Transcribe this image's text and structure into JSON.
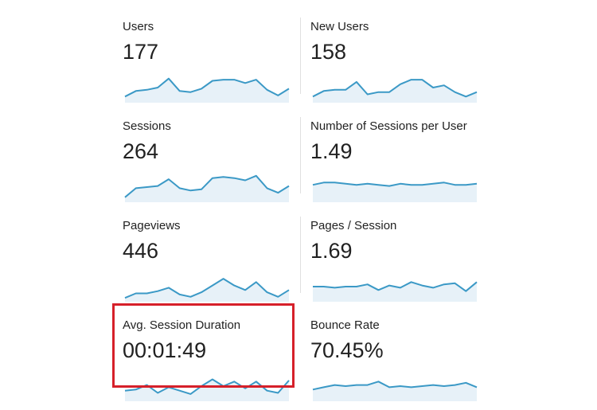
{
  "accent_color": "#3b99c6",
  "fill_color": "#e7f1f8",
  "highlight_color": "#d6202a",
  "metrics": [
    {
      "label": "Users",
      "value": "177",
      "sparkline": [
        4,
        9,
        10,
        12,
        20,
        9,
        8,
        11,
        18,
        19,
        19,
        16,
        19,
        10,
        5,
        11
      ]
    },
    {
      "label": "New Users",
      "value": "158",
      "sparkline": [
        4,
        9,
        10,
        10,
        17,
        6,
        8,
        8,
        15,
        19,
        19,
        12,
        14,
        8,
        4,
        8
      ]
    },
    {
      "label": "Sessions",
      "value": "264",
      "sparkline": [
        3,
        11,
        12,
        13,
        19,
        11,
        9,
        10,
        20,
        21,
        20,
        18,
        22,
        11,
        7,
        13
      ]
    },
    {
      "label": "Number of Sessions per User",
      "value": "1.49",
      "sparkline": [
        14,
        16,
        16,
        15,
        14,
        15,
        14,
        13,
        15,
        14,
        14,
        15,
        16,
        14,
        14,
        15
      ]
    },
    {
      "label": "Pageviews",
      "value": "446",
      "sparkline": [
        2,
        6,
        6,
        8,
        11,
        5,
        3,
        7,
        13,
        19,
        13,
        9,
        16,
        7,
        3,
        9
      ]
    },
    {
      "label": "Pages / Session",
      "value": "1.69",
      "sparkline": [
        12,
        12,
        11,
        12,
        12,
        14,
        9,
        13,
        11,
        16,
        13,
        11,
        14,
        15,
        8,
        16
      ]
    },
    {
      "label": "Avg. Session Duration",
      "value": "00:01:49",
      "sparkline": [
        8,
        9,
        13,
        6,
        11,
        8,
        5,
        12,
        18,
        12,
        16,
        10,
        16,
        8,
        6,
        17
      ]
    },
    {
      "label": "Bounce Rate",
      "value": "70.45%",
      "sparkline": [
        9,
        11,
        13,
        12,
        13,
        13,
        16,
        11,
        12,
        11,
        12,
        13,
        12,
        13,
        15,
        11
      ]
    }
  ]
}
